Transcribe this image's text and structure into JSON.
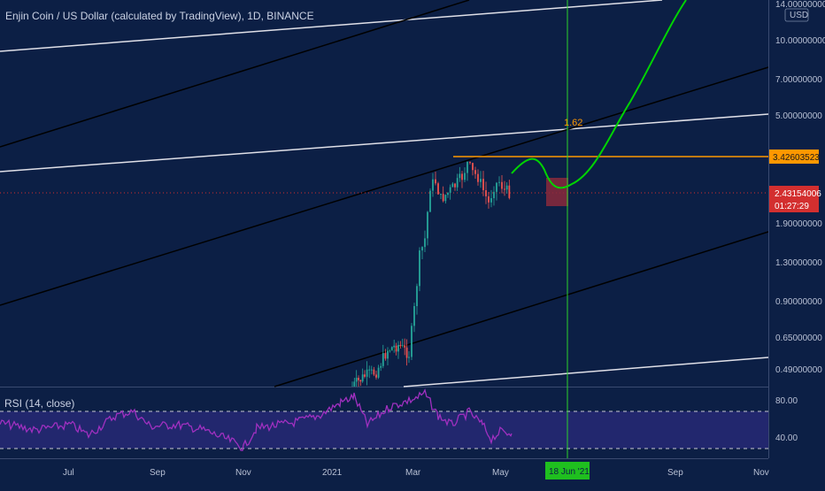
{
  "header": {
    "title": "Enjin Coin / US Dollar (calculated by TradingView), 1D, BINANCE",
    "rsi_label": "RSI (14, close)"
  },
  "price_axis": {
    "currency": "USD",
    "top_label": "14.00000000",
    "ticks": [
      "10.00000000",
      "7.00000000",
      "5.00000000",
      "1.90000000",
      "1.30000000",
      "0.90000000",
      "0.65000000",
      "0.49000000"
    ],
    "highlight_orange": "3.42603523",
    "last_price": "2.43154006",
    "countdown": "01:27:29"
  },
  "rsi_axis": {
    "ticks": [
      "80.00",
      "40.00"
    ]
  },
  "time_axis": {
    "ticks": [
      "Jul",
      "Sep",
      "Nov",
      "2021",
      "Mar",
      "May",
      "Sep",
      "Nov"
    ],
    "highlight": "18 Jun '21"
  },
  "annotations": {
    "fib_label": "1.62"
  },
  "colors": {
    "background": "#0c1f45",
    "up_candle": "#26a69a",
    "down_candle": "#ef5350",
    "projection": "#00d400",
    "orange_level": "#ff9800",
    "price_label": "#d32f2f",
    "rsi_line": "#9c27b0",
    "rsi_band": "#2a2f7a",
    "time_highlight": "#1fbf1f"
  },
  "chart_data": {
    "type": "candlestick",
    "symbol": "ENJUSD",
    "interval": "1D",
    "exchange": "BINANCE",
    "y_scale": "log",
    "indicator": "RSI (14, close)",
    "rsi_levels": [
      70,
      30
    ],
    "last_price": 2.43154006,
    "horizontal_level": 3.42603523,
    "fib_extension": 1.62,
    "projection_date": "18 Jun '21"
  }
}
